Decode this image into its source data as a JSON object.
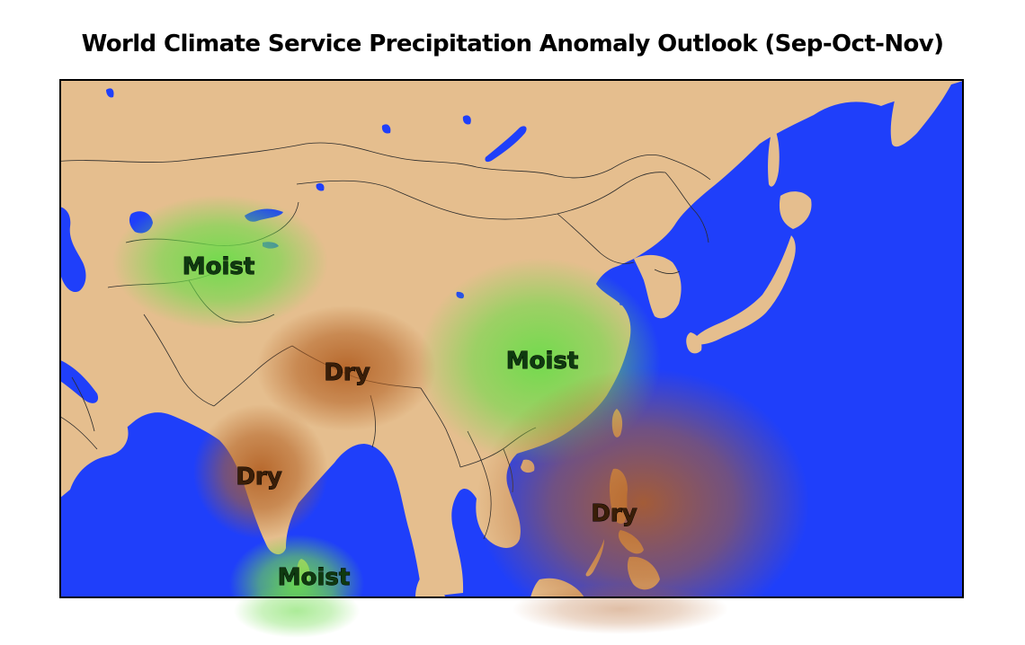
{
  "title": "World Climate Service Precipitation Anomaly Outlook (Sep-Oct-Nov)",
  "colors": {
    "ocean": "#1f3ffa",
    "land": "#e5be8e",
    "moist": "#6ddc4a",
    "dry": "#b25f22",
    "moist_text": "#0f3a10",
    "dry_text": "#3a1e08",
    "border": "#2b2b2b"
  },
  "anomalies": [
    {
      "id": "central-asia",
      "label": "Moist",
      "category": "moist"
    },
    {
      "id": "nepal-tibet",
      "label": "Dry",
      "category": "dry"
    },
    {
      "id": "east-china",
      "label": "Moist",
      "category": "moist"
    },
    {
      "id": "western-india",
      "label": "Dry",
      "category": "dry"
    },
    {
      "id": "philippines",
      "label": "Dry",
      "category": "dry"
    },
    {
      "id": "sri-lanka",
      "label": "Moist",
      "category": "moist"
    }
  ]
}
